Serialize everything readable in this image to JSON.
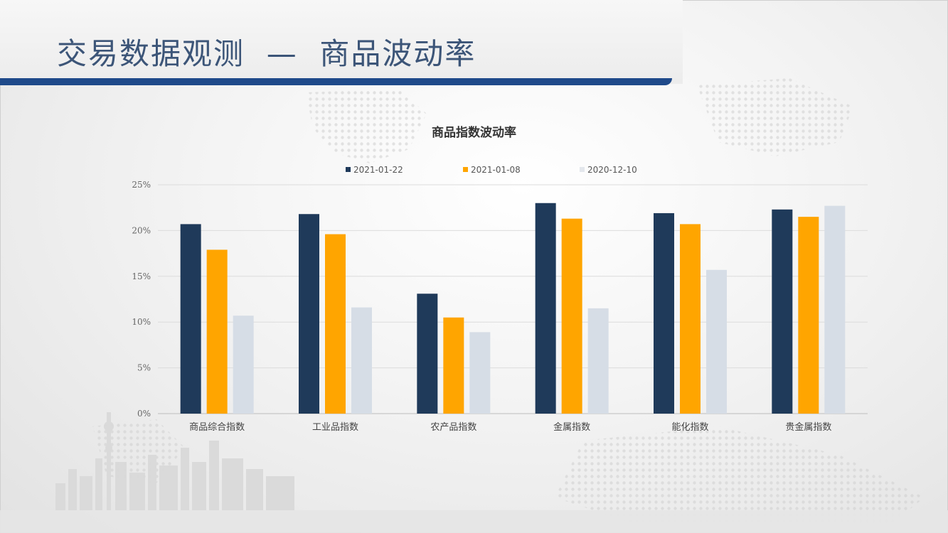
{
  "slide": {
    "title": "交易数据观测  —  商品波动率"
  },
  "colors": {
    "title_text": "#3c5578",
    "title_rule": "#1f4a8a",
    "series": [
      "#1f3a5a",
      "#ffa500",
      "#d6dde6"
    ]
  },
  "chart_data": {
    "type": "bar",
    "title": "商品指数波动率",
    "categories": [
      "商品综合指数",
      "工业品指数",
      "农产品指数",
      "金属指数",
      "能化指数",
      "贵金属指数"
    ],
    "series": [
      {
        "name": "2021-01-22",
        "values": [
          20.7,
          21.8,
          13.1,
          23.0,
          21.9,
          22.3
        ]
      },
      {
        "name": "2021-01-08",
        "values": [
          17.9,
          19.6,
          10.5,
          21.3,
          20.7,
          21.5
        ]
      },
      {
        "name": "2020-12-10",
        "values": [
          10.7,
          11.6,
          8.9,
          11.5,
          15.7,
          22.7
        ]
      }
    ],
    "y_ticks": [
      "0%",
      "5%",
      "10%",
      "15%",
      "20%",
      "25%"
    ],
    "ylim": [
      0,
      25
    ],
    "y_unit": "%",
    "grid": true,
    "legend_position": "top-center"
  }
}
